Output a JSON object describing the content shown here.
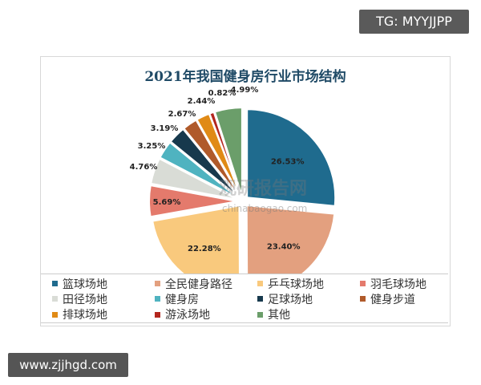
{
  "badges": {
    "top_right": "TG: MYYJJPP",
    "bottom_left": "www.zjjhgd.com"
  },
  "watermark": {
    "name": "观研报告网",
    "url": "chinabaogao.com"
  },
  "chart_data": {
    "type": "pie",
    "title": "2021年我国健身房行业市场结构",
    "exploded": true,
    "legend_position": "bottom",
    "categories": [
      "篮球场地",
      "全民健身路径",
      "乒乓球场地",
      "羽毛球场地",
      "田径场地",
      "健身房",
      "足球场地",
      "健身步道",
      "排球场地",
      "游泳场地",
      "其他"
    ],
    "values": [
      26.53,
      23.4,
      22.28,
      5.69,
      4.76,
      3.25,
      3.19,
      2.67,
      2.44,
      0.82,
      4.99
    ],
    "labels": [
      "26.53%",
      "23.40%",
      "22.28%",
      "5.69%",
      "4.76%",
      "3.25%",
      "3.19%",
      "2.67%",
      "2.44%",
      "0.82%",
      "4.99%"
    ],
    "colors": [
      "#1f6b8e",
      "#e3a07f",
      "#f9c97d",
      "#e47a6c",
      "#d9dcd6",
      "#4fb3c0",
      "#17394d",
      "#b05a2a",
      "#e08a16",
      "#b3261e",
      "#6b9e6a"
    ]
  }
}
